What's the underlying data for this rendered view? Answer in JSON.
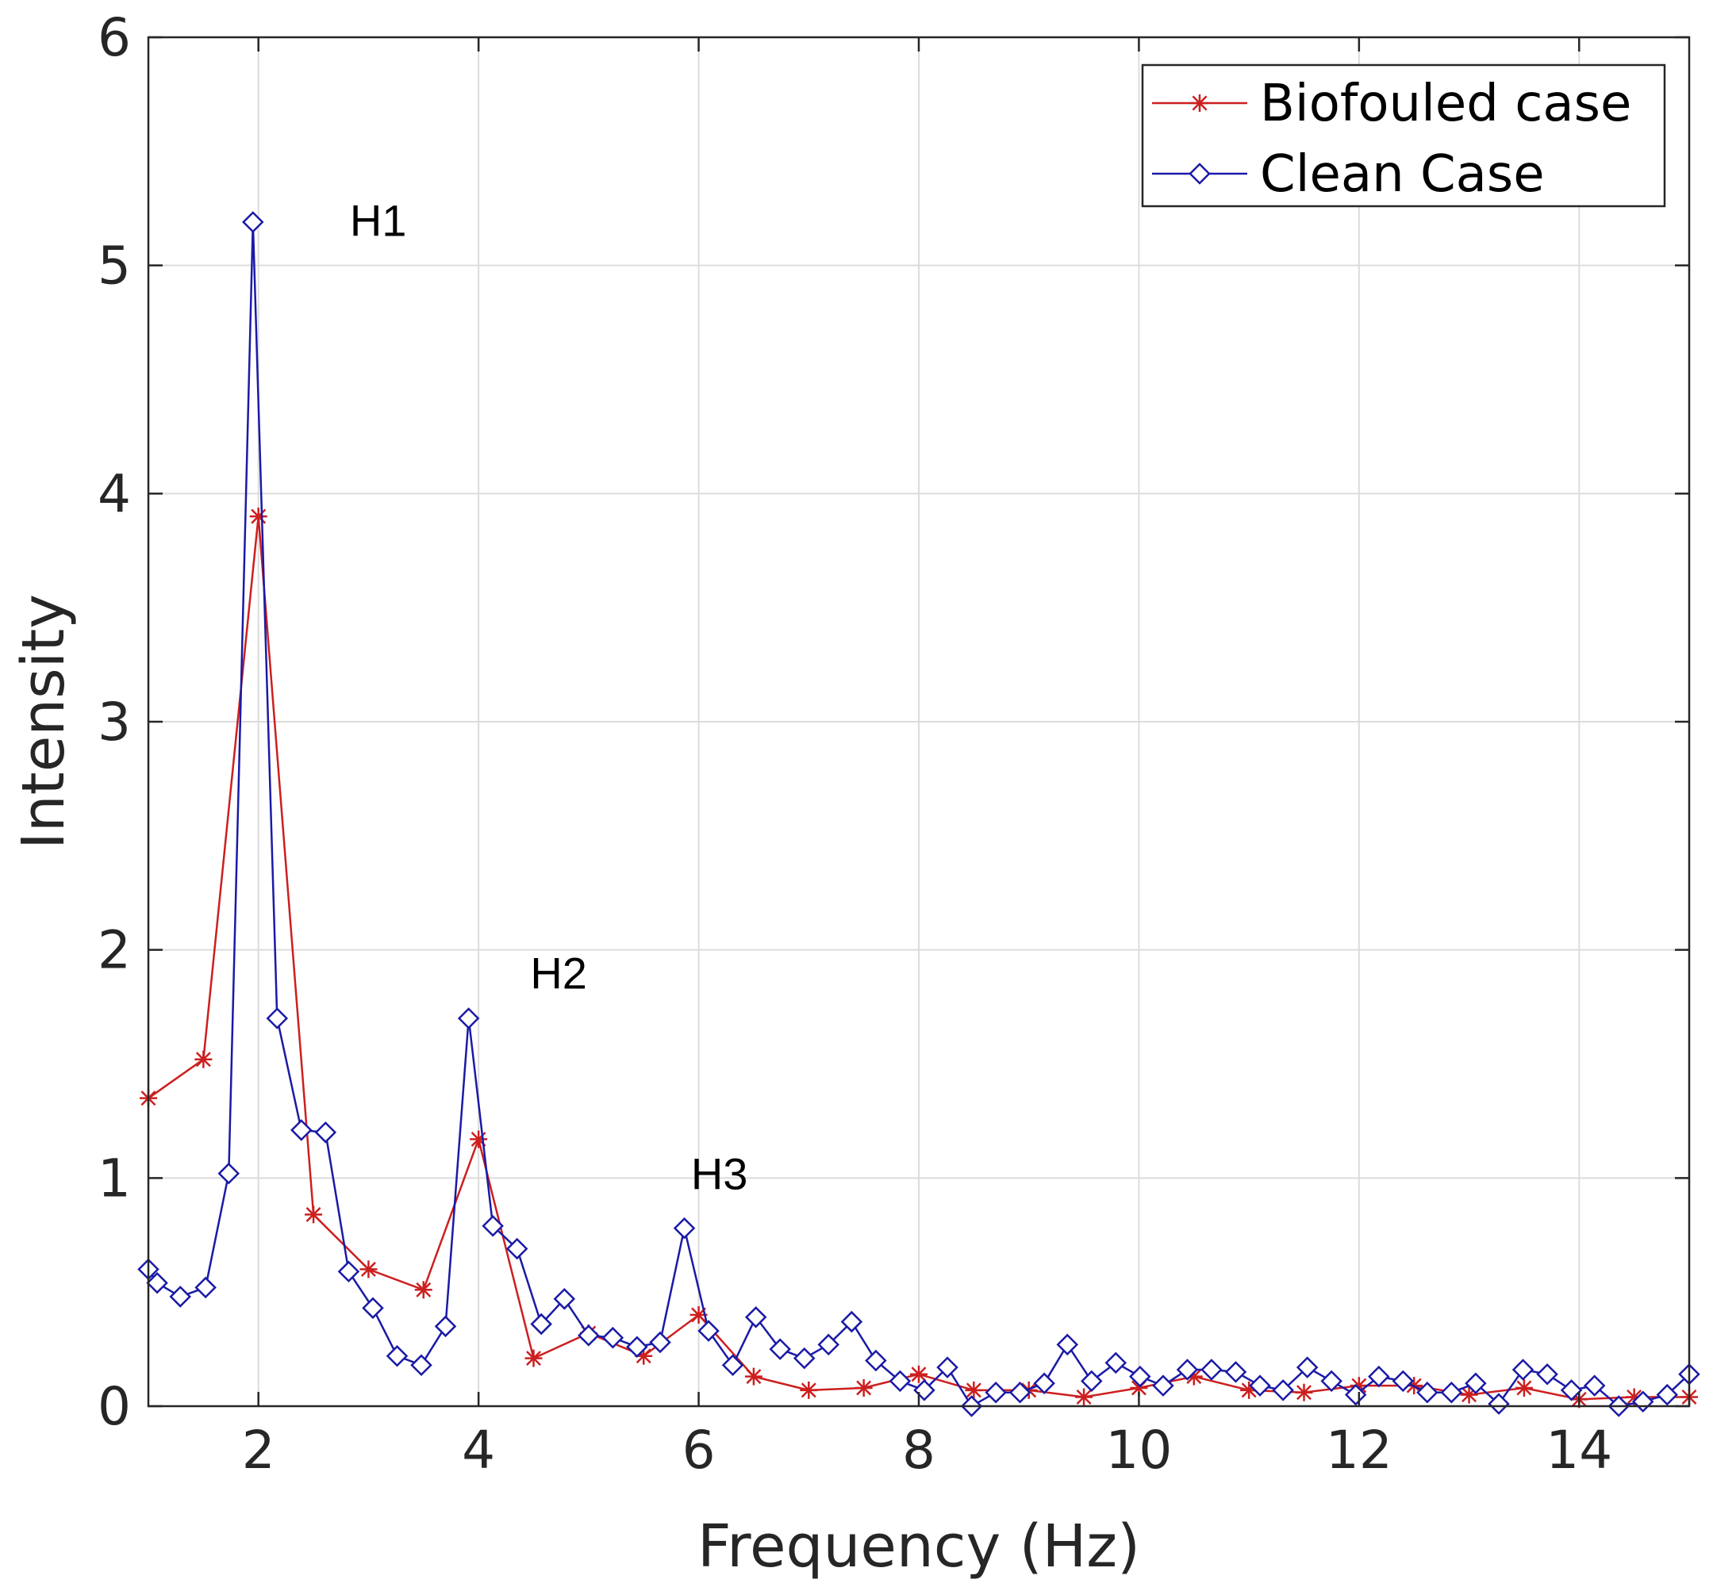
{
  "chart_data": {
    "type": "line",
    "title": "",
    "xlabel": "Frequency (Hz)",
    "ylabel": "Intensity",
    "xlim": [
      1,
      15
    ],
    "ylim": [
      0,
      6
    ],
    "xticks": [
      2,
      4,
      6,
      8,
      10,
      12,
      14
    ],
    "yticks": [
      0,
      1,
      2,
      3,
      4,
      5,
      6
    ],
    "xtick_labels": [
      "2",
      "4",
      "6",
      "8",
      "10",
      "12",
      "14"
    ],
    "ytick_labels": [
      "0",
      "1",
      "2",
      "3",
      "4",
      "5",
      "6"
    ],
    "grid": true,
    "legend_position": "top-right",
    "series": [
      {
        "name": "Biofouled case",
        "color": "#cc1f1f",
        "marker": "asterisk",
        "x": [
          1.0,
          1.5,
          2.0,
          2.5,
          3.0,
          3.5,
          4.0,
          4.5,
          5.0,
          5.5,
          6.0,
          6.5,
          7.0,
          7.5,
          8.0,
          8.5,
          9.0,
          9.5,
          10.0,
          10.5,
          11.0,
          11.5,
          12.0,
          12.5,
          13.0,
          13.5,
          14.0,
          14.5,
          15.0
        ],
        "values": [
          1.35,
          1.52,
          3.9,
          0.84,
          0.6,
          0.51,
          1.17,
          0.21,
          0.32,
          0.22,
          0.4,
          0.13,
          0.07,
          0.08,
          0.14,
          0.07,
          0.07,
          0.04,
          0.08,
          0.13,
          0.07,
          0.06,
          0.09,
          0.09,
          0.05,
          0.08,
          0.03,
          0.04,
          0.04
        ]
      },
      {
        "name": "Clean Case",
        "color": "#1a1aa6",
        "marker": "diamond",
        "x": [
          1.0,
          1.08,
          1.29,
          1.52,
          1.73,
          1.95,
          2.17,
          2.39,
          2.61,
          2.82,
          3.04,
          3.26,
          3.48,
          3.7,
          3.91,
          4.13,
          4.35,
          4.57,
          4.78,
          5.0,
          5.22,
          5.44,
          5.65,
          5.87,
          6.09,
          6.31,
          6.52,
          6.74,
          6.96,
          7.18,
          7.39,
          7.61,
          7.83,
          8.05,
          8.26,
          8.48,
          8.7,
          8.92,
          9.14,
          9.35,
          9.57,
          9.79,
          10.01,
          10.22,
          10.44,
          10.66,
          10.88,
          11.1,
          11.31,
          11.53,
          11.75,
          11.97,
          12.18,
          12.4,
          12.62,
          12.84,
          13.06,
          13.27,
          13.49,
          13.71,
          13.93,
          14.14,
          14.36,
          14.58,
          14.8,
          15.0
        ],
        "values": [
          0.6,
          0.54,
          0.48,
          0.52,
          1.02,
          5.19,
          1.7,
          1.21,
          1.2,
          0.59,
          0.43,
          0.22,
          0.18,
          0.35,
          1.7,
          0.79,
          0.69,
          0.36,
          0.47,
          0.31,
          0.3,
          0.26,
          0.28,
          0.78,
          0.33,
          0.18,
          0.39,
          0.25,
          0.21,
          0.27,
          0.37,
          0.2,
          0.11,
          0.07,
          0.17,
          0.0,
          0.06,
          0.06,
          0.1,
          0.27,
          0.11,
          0.19,
          0.13,
          0.09,
          0.16,
          0.16,
          0.15,
          0.09,
          0.07,
          0.17,
          0.11,
          0.05,
          0.13,
          0.11,
          0.06,
          0.06,
          0.1,
          0.01,
          0.16,
          0.14,
          0.07,
          0.09,
          0.0,
          0.02,
          0.05,
          0.14
        ]
      }
    ],
    "annotations": [
      {
        "text": "H1",
        "x": 2.83,
        "y": 5.13
      },
      {
        "text": "H2",
        "x": 4.47,
        "y": 1.83
      },
      {
        "text": "H3",
        "x": 5.93,
        "y": 0.95
      }
    ]
  }
}
